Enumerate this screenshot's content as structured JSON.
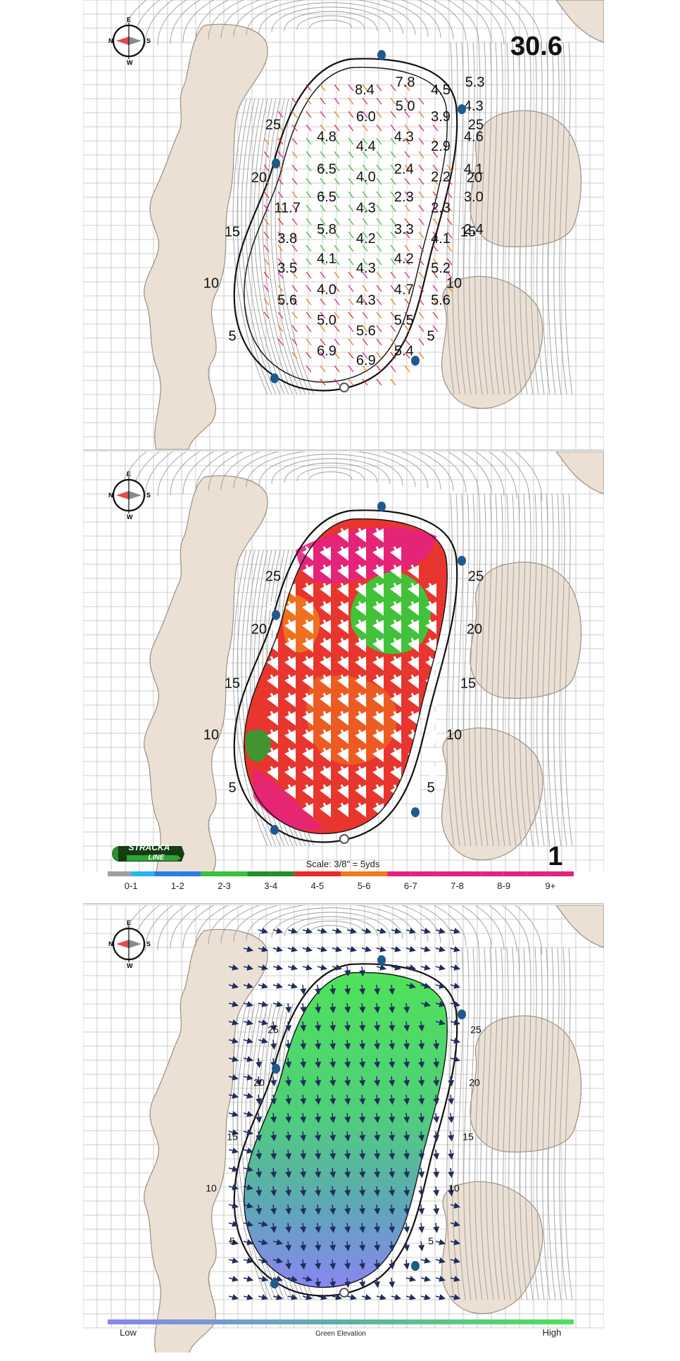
{
  "panel1": {
    "green_number": "30.6",
    "slope_labels": [
      {
        "text": "8.4",
        "col": 3.75,
        "row": 1.1
      },
      {
        "text": "7.8",
        "col": 5.35,
        "row": 0.5
      },
      {
        "text": "4.5",
        "col": 6.75,
        "row": 1.1
      },
      {
        "text": "5.3",
        "col": 8.1,
        "row": 0.5
      },
      {
        "text": "5.0",
        "col": 5.35,
        "row": 2.3
      },
      {
        "text": "4.3",
        "col": 8.05,
        "row": 2.3
      },
      {
        "text": "6.0",
        "col": 3.8,
        "row": 3.1
      },
      {
        "text": "3.9",
        "col": 6.75,
        "row": 3.1
      },
      {
        "text": "4.8",
        "col": 2.25,
        "row": 4.6
      },
      {
        "text": "4.3",
        "col": 5.3,
        "row": 4.6
      },
      {
        "text": "4.6",
        "col": 8.05,
        "row": 4.6
      },
      {
        "text": "4.4",
        "col": 3.8,
        "row": 5.3
      },
      {
        "text": "2.9",
        "col": 6.75,
        "row": 5.3
      },
      {
        "text": "6.5",
        "col": 2.25,
        "row": 7.0
      },
      {
        "text": "2.4",
        "col": 5.3,
        "row": 7.0
      },
      {
        "text": "4.1",
        "col": 8.05,
        "row": 7.0
      },
      {
        "text": "4.0",
        "col": 3.8,
        "row": 7.6
      },
      {
        "text": "2.2",
        "col": 6.75,
        "row": 7.6
      },
      {
        "text": "6.5",
        "col": 2.25,
        "row": 9.1
      },
      {
        "text": "2.3",
        "col": 5.3,
        "row": 9.1
      },
      {
        "text": "3.0",
        "col": 8.05,
        "row": 9.1
      },
      {
        "text": "11.7",
        "col": 0.7,
        "row": 9.9
      },
      {
        "text": "4.3",
        "col": 3.8,
        "row": 9.9
      },
      {
        "text": "2.3",
        "col": 6.75,
        "row": 9.9
      },
      {
        "text": "5.8",
        "col": 2.25,
        "row": 11.5
      },
      {
        "text": "3.3",
        "col": 5.3,
        "row": 11.5
      },
      {
        "text": "2.4",
        "col": 8.05,
        "row": 11.5
      },
      {
        "text": "3.8",
        "col": 0.7,
        "row": 12.2
      },
      {
        "text": "4.2",
        "col": 3.8,
        "row": 12.2
      },
      {
        "text": "4.1",
        "col": 6.75,
        "row": 12.2
      },
      {
        "text": "4.1",
        "col": 2.25,
        "row": 13.7
      },
      {
        "text": "4.2",
        "col": 5.3,
        "row": 13.7
      },
      {
        "text": "3.5",
        "col": 0.7,
        "row": 14.4
      },
      {
        "text": "4.3",
        "col": 3.8,
        "row": 14.4
      },
      {
        "text": "5.2",
        "col": 6.75,
        "row": 14.4
      },
      {
        "text": "4.0",
        "col": 2.25,
        "row": 16.0
      },
      {
        "text": "4.7",
        "col": 5.3,
        "row": 16.0
      },
      {
        "text": "5.6",
        "col": 0.7,
        "row": 16.8
      },
      {
        "text": "4.3",
        "col": 3.8,
        "row": 16.8
      },
      {
        "text": "5.6",
        "col": 6.75,
        "row": 16.8
      },
      {
        "text": "5.0",
        "col": 2.25,
        "row": 18.3
      },
      {
        "text": "5.5",
        "col": 5.3,
        "row": 18.3
      },
      {
        "text": "5.6",
        "col": 3.8,
        "row": 19.1
      },
      {
        "text": "6.9",
        "col": 2.25,
        "row": 20.6
      },
      {
        "text": "5.4",
        "col": 5.3,
        "row": 20.6
      },
      {
        "text": "6.9",
        "col": 3.8,
        "row": 21.3
      }
    ]
  },
  "distance_markers": [
    "25",
    "20",
    "15",
    "10",
    "5"
  ],
  "panel2": {
    "hole_number": "1",
    "scale_text": "Scale: 3/8\" = 5yds",
    "brand": "STRACKA LINE",
    "legend": [
      {
        "label": "0-1",
        "colors": [
          "#a0a0a0",
          "#29b6e8"
        ]
      },
      {
        "label": "1-2",
        "colors": [
          "#2a7de1",
          "#2a7de1"
        ]
      },
      {
        "label": "2-3",
        "colors": [
          "#37c23b",
          "#37c23b"
        ]
      },
      {
        "label": "3-4",
        "colors": [
          "#1f8f2a",
          "#1f8f2a"
        ]
      },
      {
        "label": "4-5",
        "colors": [
          "#e8292b",
          "#e8292b"
        ]
      },
      {
        "label": "5-6",
        "colors": [
          "#f07a1c",
          "#f07a1c"
        ]
      },
      {
        "label": "6-7",
        "colors": [
          "#e5227f",
          "#e5227f"
        ]
      },
      {
        "label": "7-8",
        "colors": [
          "#e5227f",
          "#e5227f"
        ]
      },
      {
        "label": "8-9",
        "colors": [
          "#e5227f",
          "#e5227f"
        ]
      },
      {
        "label": "9+",
        "colors": [
          "#e5227f",
          "#e5227f"
        ]
      }
    ]
  },
  "panel3": {
    "elevation_low": "Low",
    "elevation_title": "Green Elevation",
    "elevation_high": "High"
  },
  "colors": {
    "bunker": "#ebe0d3",
    "bunker_edge": "#9a8f84",
    "grid": "#bfbfbf",
    "contour": "#9c9c9c",
    "water_dot": "#1f5a8c",
    "arrow_dark": "#1f2d5c",
    "elev_low": "#8a8ff0",
    "elev_high": "#4fe25a"
  },
  "compass": {
    "north": "N",
    "east": "E",
    "south": "S",
    "west": "W"
  }
}
